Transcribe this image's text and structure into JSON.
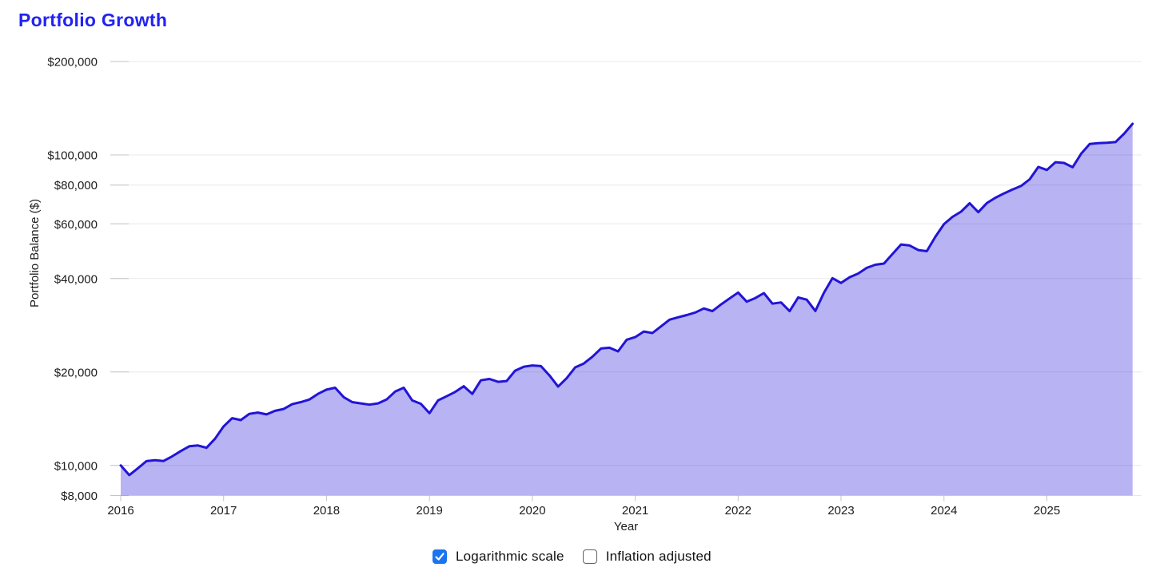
{
  "title": "Portfolio Growth",
  "controls": {
    "logarithmic": {
      "label": "Logarithmic scale",
      "checked": true
    },
    "inflation": {
      "label": "Inflation adjusted",
      "checked": false
    }
  },
  "colors": {
    "title": "#2222f2",
    "line": "#2214d6",
    "fill": "rgba(34,20,214,0.32)",
    "grid": "#e8e8e8",
    "tick": "#c4c4c4",
    "axis_text": "#1c1c1c",
    "checkbox_accent": "#1b74f0"
  },
  "chart_data": {
    "type": "area",
    "title": "Portfolio Growth",
    "xlabel": "Year",
    "ylabel": "Portfolio Balance ($)",
    "y_scale": "log",
    "grid": true,
    "ylim": [
      8000,
      200000
    ],
    "xlim": [
      "2016-01",
      "2025-11"
    ],
    "y_ticks": [
      {
        "value": 200000,
        "label": "$200,000"
      },
      {
        "value": 100000,
        "label": "$100,000"
      },
      {
        "value": 80000,
        "label": "$80,000"
      },
      {
        "value": 60000,
        "label": "$60,000"
      },
      {
        "value": 40000,
        "label": "$40,000"
      },
      {
        "value": 20000,
        "label": "$20,000"
      },
      {
        "value": 10000,
        "label": "$10,000"
      },
      {
        "value": 8000,
        "label": "$8,000"
      }
    ],
    "x_ticks": [
      2016,
      2017,
      2018,
      2019,
      2020,
      2021,
      2022,
      2023,
      2024,
      2025
    ],
    "series": [
      {
        "name": "Portfolio Balance",
        "start": "2016-01",
        "interval": "monthly",
        "values": [
          10000,
          9310,
          9800,
          10330,
          10400,
          10340,
          10700,
          11130,
          11530,
          11600,
          11400,
          12200,
          13360,
          14200,
          14000,
          14660,
          14800,
          14600,
          15000,
          15200,
          15750,
          16000,
          16300,
          17000,
          17550,
          17800,
          16600,
          16000,
          15850,
          15700,
          15850,
          16300,
          17300,
          17800,
          16200,
          15800,
          14730,
          16200,
          16700,
          17250,
          18000,
          17000,
          18800,
          19000,
          18600,
          18700,
          20200,
          20800,
          21000,
          20900,
          19500,
          17950,
          19100,
          20700,
          21300,
          22400,
          23800,
          23950,
          23300,
          25400,
          25900,
          27000,
          26700,
          28050,
          29470,
          30000,
          30500,
          31100,
          32050,
          31400,
          33000,
          34500,
          36060,
          33700,
          34600,
          35900,
          33200,
          33500,
          31400,
          34750,
          34200,
          31450,
          36000,
          40100,
          38700,
          40400,
          41500,
          43300,
          44300,
          44700,
          48000,
          51500,
          51100,
          49400,
          49000,
          54500,
          59900,
          63200,
          65700,
          69900,
          65400,
          70000,
          72800,
          75200,
          77400,
          79500,
          83500,
          91500,
          89500,
          94800,
          94300,
          91300,
          101000,
          108500,
          109200,
          109500,
          110000,
          117000,
          126000
        ]
      }
    ]
  }
}
